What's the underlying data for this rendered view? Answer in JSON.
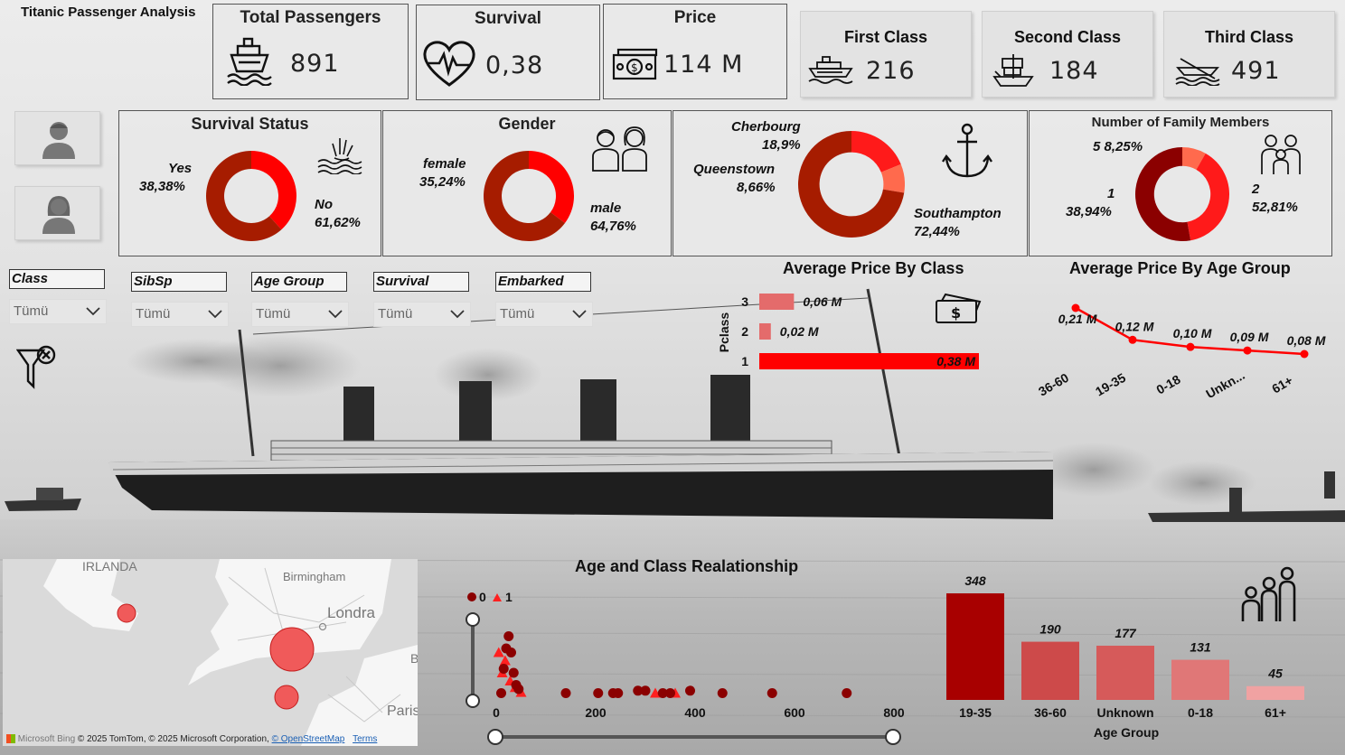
{
  "app_title": "Titanic Passenger Analysis",
  "kpis": [
    {
      "title": "Total Passengers",
      "value": "891",
      "icon": "ship-icon"
    },
    {
      "title": "Survival",
      "value": "0,38",
      "icon": "heartbeat-icon"
    },
    {
      "title": "Price",
      "value": "114 M",
      "icon": "money-icon"
    }
  ],
  "class_cards": [
    {
      "title": "First Class",
      "value": "216",
      "icon": "cruise-ship-icon"
    },
    {
      "title": "Second Class",
      "value": "184",
      "icon": "sailing-ship-icon"
    },
    {
      "title": "Third Class",
      "value": "491",
      "icon": "rowboat-icon"
    }
  ],
  "donuts": {
    "survival": {
      "title": "Survival Status",
      "slices": [
        {
          "label": "Yes",
          "pct": "38,38%",
          "value": 38.38,
          "color": "#ff0000"
        },
        {
          "label": "No",
          "pct": "61,62%",
          "value": 61.62,
          "color": "#a61c00"
        }
      ]
    },
    "gender": {
      "title": "Gender",
      "slices": [
        {
          "label": "female",
          "pct": "35,24%",
          "value": 35.24,
          "color": "#ff0000"
        },
        {
          "label": "male",
          "pct": "64,76%",
          "value": 64.76,
          "color": "#a61c00"
        }
      ]
    },
    "embarked": {
      "slices": [
        {
          "label": "Cherbourg",
          "pct": "18,9%",
          "value": 18.9,
          "color": "#ff1a1a"
        },
        {
          "label": "Queenstown",
          "pct": "8,66%",
          "value": 8.66,
          "color": "#ff6a4d"
        },
        {
          "label": "Southampton",
          "pct": "72,44%",
          "value": 72.44,
          "color": "#a61c00"
        }
      ]
    },
    "family": {
      "title": "Number of Family Members",
      "slices": [
        {
          "label": "5",
          "pct": "8,25%",
          "value": 8.25,
          "color": "#ff6a4d"
        },
        {
          "label": "1",
          "pct": "38,94%",
          "value": 38.94,
          "color": "#ff1a1a"
        },
        {
          "label": "2",
          "pct": "52,81%",
          "value": 52.81,
          "color": "#8b0000"
        }
      ]
    }
  },
  "slicers": [
    {
      "label": "Class",
      "value": "Tümü"
    },
    {
      "label": "SibSp",
      "value": "Tümü"
    },
    {
      "label": "Age Group",
      "value": "Tümü"
    },
    {
      "label": "Survival",
      "value": "Tümü"
    },
    {
      "label": "Embarked",
      "value": "Tümü"
    }
  ],
  "chart_data": [
    {
      "type": "bar",
      "title": "Average Price By Class",
      "ylabel": "Pclass",
      "categories": [
        "3",
        "2",
        "1"
      ],
      "values": [
        0.06,
        0.02,
        0.38
      ],
      "labels": [
        "0,06 M",
        "0,02 M",
        "0,38 M"
      ],
      "colors": [
        "#e46b6b",
        "#e46b6b",
        "#ff0000"
      ],
      "orientation": "horizontal"
    },
    {
      "type": "line",
      "title": "Average Price By Age Group",
      "categories": [
        "36-60",
        "19-35",
        "0-18",
        "Unkn...",
        "61+"
      ],
      "values": [
        0.21,
        0.12,
        0.1,
        0.09,
        0.08
      ],
      "labels": [
        "0,21 M",
        "0,12 M",
        "0,10 M",
        "0,09 M",
        "0,08 M"
      ],
      "color": "#ff0000"
    },
    {
      "type": "scatter",
      "title": "Age and Class Realationship",
      "legend": [
        {
          "name": "0",
          "shape": "circle",
          "color": "#8b0000"
        },
        {
          "name": "1",
          "shape": "triangle",
          "color": "#ff2020"
        }
      ],
      "xticks": [
        "0",
        "200",
        "400",
        "600",
        "800"
      ],
      "xlim": [
        0,
        800
      ],
      "points_0": [
        [
          10,
          0.05
        ],
        [
          15,
          0.35
        ],
        [
          20,
          0.6
        ],
        [
          25,
          0.75
        ],
        [
          30,
          0.55
        ],
        [
          35,
          0.3
        ],
        [
          40,
          0.15
        ],
        [
          45,
          0.1
        ],
        [
          140,
          0.05
        ],
        [
          205,
          0.05
        ],
        [
          235,
          0.05
        ],
        [
          245,
          0.05
        ],
        [
          285,
          0.08
        ],
        [
          300,
          0.08
        ],
        [
          335,
          0.05
        ],
        [
          350,
          0.05
        ],
        [
          390,
          0.08
        ],
        [
          455,
          0.05
        ],
        [
          555,
          0.05
        ],
        [
          705,
          0.05
        ]
      ],
      "points_1": [
        [
          5,
          0.55
        ],
        [
          12,
          0.3
        ],
        [
          18,
          0.45
        ],
        [
          28,
          0.2
        ],
        [
          38,
          0.12
        ],
        [
          50,
          0.06
        ],
        [
          320,
          0.05
        ],
        [
          360,
          0.05
        ]
      ]
    },
    {
      "type": "bar",
      "xlabel": "Age Group",
      "categories": [
        "19-35",
        "36-60",
        "Unknown",
        "0-18",
        "61+"
      ],
      "values": [
        348,
        190,
        177,
        131,
        45
      ],
      "colors": [
        "#a80000",
        "#cd4a4a",
        "#d65a5a",
        "#e07777",
        "#f0a2a2"
      ],
      "ylim": [
        0,
        348
      ]
    }
  ],
  "map": {
    "labels": {
      "irlanda": "IRLANDA",
      "birmingham": "Birmingham",
      "londra": "Londra",
      "paris": "Paris",
      "b": "B"
    },
    "attribution": "© 2025 TomTom, © 2025 Microsoft Corporation,",
    "osm": "© OpenStreetMap",
    "terms": "Terms",
    "bing": "Microsoft Bing"
  }
}
